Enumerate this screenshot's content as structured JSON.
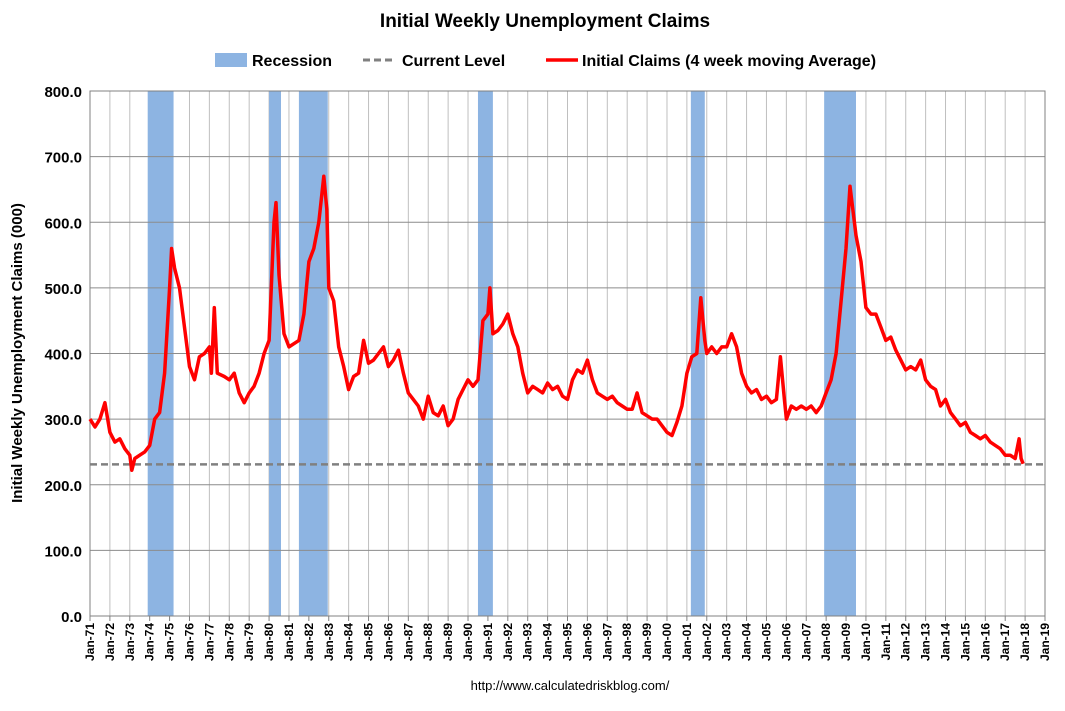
{
  "chart_data": {
    "type": "line",
    "title": "Initial Weekly Unemployment Claims",
    "ylabel": "Initial Weekly Unemployment Claims (000)",
    "footer": "http://www.calculatedriskblog.com/",
    "xlim": [
      1971,
      2019
    ],
    "xticks": [
      {
        "value": 1971,
        "label": "Jan-71"
      },
      {
        "value": 1972,
        "label": "Jan-72"
      },
      {
        "value": 1973,
        "label": "Jan-73"
      },
      {
        "value": 1974,
        "label": "Jan-74"
      },
      {
        "value": 1975,
        "label": "Jan-75"
      },
      {
        "value": 1976,
        "label": "Jan-76"
      },
      {
        "value": 1977,
        "label": "Jan-77"
      },
      {
        "value": 1978,
        "label": "Jan-78"
      },
      {
        "value": 1979,
        "label": "Jan-79"
      },
      {
        "value": 1980,
        "label": "Jan-80"
      },
      {
        "value": 1981,
        "label": "Jan-81"
      },
      {
        "value": 1982,
        "label": "Jan-82"
      },
      {
        "value": 1983,
        "label": "Jan-83"
      },
      {
        "value": 1984,
        "label": "Jan-84"
      },
      {
        "value": 1985,
        "label": "Jan-85"
      },
      {
        "value": 1986,
        "label": "Jan-86"
      },
      {
        "value": 1987,
        "label": "Jan-87"
      },
      {
        "value": 1988,
        "label": "Jan-88"
      },
      {
        "value": 1989,
        "label": "Jan-89"
      },
      {
        "value": 1990,
        "label": "Jan-90"
      },
      {
        "value": 1991,
        "label": "Jan-91"
      },
      {
        "value": 1992,
        "label": "Jan-92"
      },
      {
        "value": 1993,
        "label": "Jan-93"
      },
      {
        "value": 1994,
        "label": "Jan-94"
      },
      {
        "value": 1995,
        "label": "Jan-95"
      },
      {
        "value": 1996,
        "label": "Jan-96"
      },
      {
        "value": 1997,
        "label": "Jan-97"
      },
      {
        "value": 1998,
        "label": "Jan-98"
      },
      {
        "value": 1999,
        "label": "Jan-99"
      },
      {
        "value": 2000,
        "label": "Jan-00"
      },
      {
        "value": 2001,
        "label": "Jan-01"
      },
      {
        "value": 2002,
        "label": "Jan-02"
      },
      {
        "value": 2003,
        "label": "Jan-03"
      },
      {
        "value": 2004,
        "label": "Jan-04"
      },
      {
        "value": 2005,
        "label": "Jan-05"
      },
      {
        "value": 2006,
        "label": "Jan-06"
      },
      {
        "value": 2007,
        "label": "Jan-07"
      },
      {
        "value": 2008,
        "label": "Jan-08"
      },
      {
        "value": 2009,
        "label": "Jan-09"
      },
      {
        "value": 2010,
        "label": "Jan-10"
      },
      {
        "value": 2011,
        "label": "Jan-11"
      },
      {
        "value": 2012,
        "label": "Jan-12"
      },
      {
        "value": 2013,
        "label": "Jan-13"
      },
      {
        "value": 2014,
        "label": "Jan-14"
      },
      {
        "value": 2015,
        "label": "Jan-15"
      },
      {
        "value": 2016,
        "label": "Jan-16"
      },
      {
        "value": 2017,
        "label": "Jan-17"
      },
      {
        "value": 2018,
        "label": "Jan-18"
      },
      {
        "value": 2019,
        "label": "Jan-19"
      }
    ],
    "ylim": [
      0,
      800
    ],
    "yticks": [
      {
        "value": 0,
        "label": "0.0"
      },
      {
        "value": 100,
        "label": "100.0"
      },
      {
        "value": 200,
        "label": "200.0"
      },
      {
        "value": 300,
        "label": "300.0"
      },
      {
        "value": 400,
        "label": "400.0"
      },
      {
        "value": 500,
        "label": "500.0"
      },
      {
        "value": 600,
        "label": "600.0"
      },
      {
        "value": 700,
        "label": "700.0"
      },
      {
        "value": 800,
        "label": "800.0"
      }
    ],
    "grid": true,
    "legend": "top",
    "recessions": {
      "name": "Recession",
      "color": "#8db4e2",
      "spans": [
        [
          1973.9,
          1975.2
        ],
        [
          1980.0,
          1980.6
        ],
        [
          1981.5,
          1982.95
        ],
        [
          1990.5,
          1991.25
        ],
        [
          2001.2,
          2001.9
        ],
        [
          2007.9,
          2009.5
        ]
      ]
    },
    "current_level": {
      "name": "Current Level",
      "value": 231,
      "color": "#808080"
    },
    "x": [
      1971.0,
      1971.25,
      1971.5,
      1971.75,
      1972.0,
      1972.25,
      1972.5,
      1972.75,
      1973.0,
      1973.1,
      1973.25,
      1973.5,
      1973.75,
      1974.0,
      1974.25,
      1974.5,
      1974.75,
      1975.0,
      1975.1,
      1975.25,
      1975.5,
      1975.75,
      1976.0,
      1976.25,
      1976.5,
      1976.75,
      1977.0,
      1977.1,
      1977.25,
      1977.4,
      1977.75,
      1978.0,
      1978.25,
      1978.5,
      1978.75,
      1979.0,
      1979.25,
      1979.5,
      1979.75,
      1980.0,
      1980.25,
      1980.35,
      1980.5,
      1980.75,
      1981.0,
      1981.25,
      1981.5,
      1981.75,
      1982.0,
      1982.25,
      1982.5,
      1982.75,
      1982.9,
      1983.0,
      1983.25,
      1983.5,
      1983.75,
      1984.0,
      1984.25,
      1984.5,
      1984.75,
      1985.0,
      1985.25,
      1985.5,
      1985.75,
      1986.0,
      1986.25,
      1986.5,
      1986.75,
      1987.0,
      1987.25,
      1987.5,
      1987.75,
      1988.0,
      1988.25,
      1988.5,
      1988.75,
      1989.0,
      1989.25,
      1989.5,
      1989.75,
      1990.0,
      1990.25,
      1990.5,
      1990.75,
      1991.0,
      1991.1,
      1991.25,
      1991.5,
      1991.75,
      1992.0,
      1992.25,
      1992.5,
      1992.75,
      1993.0,
      1993.25,
      1993.5,
      1993.75,
      1994.0,
      1994.25,
      1994.5,
      1994.75,
      1995.0,
      1995.25,
      1995.5,
      1995.75,
      1996.0,
      1996.25,
      1996.5,
      1996.75,
      1997.0,
      1997.25,
      1997.5,
      1997.75,
      1998.0,
      1998.25,
      1998.5,
      1998.75,
      1999.0,
      1999.25,
      1999.5,
      1999.75,
      2000.0,
      2000.25,
      2000.5,
      2000.75,
      2001.0,
      2001.25,
      2001.5,
      2001.7,
      2001.9,
      2002.0,
      2002.25,
      2002.5,
      2002.75,
      2003.0,
      2003.25,
      2003.5,
      2003.75,
      2004.0,
      2004.25,
      2004.5,
      2004.75,
      2005.0,
      2005.25,
      2005.5,
      2005.7,
      2005.9,
      2006.0,
      2006.25,
      2006.5,
      2006.75,
      2007.0,
      2007.25,
      2007.5,
      2007.75,
      2008.0,
      2008.25,
      2008.5,
      2008.75,
      2009.0,
      2009.2,
      2009.5,
      2009.75,
      2010.0,
      2010.25,
      2010.5,
      2010.75,
      2011.0,
      2011.25,
      2011.5,
      2011.75,
      2012.0,
      2012.25,
      2012.5,
      2012.75,
      2013.0,
      2013.25,
      2013.5,
      2013.75,
      2014.0,
      2014.25,
      2014.5,
      2014.75,
      2015.0,
      2015.25,
      2015.5,
      2015.75,
      2016.0,
      2016.25,
      2016.5,
      2016.75,
      2017.0,
      2017.25,
      2017.5,
      2017.7,
      2017.8,
      2017.9
    ],
    "series": [
      {
        "name": "Initial Claims (4 week moving Average)",
        "color": "#ff0000",
        "values": [
          300,
          288,
          300,
          325,
          280,
          265,
          270,
          255,
          245,
          222,
          240,
          245,
          250,
          260,
          300,
          310,
          370,
          500,
          560,
          530,
          500,
          440,
          380,
          360,
          395,
          400,
          410,
          370,
          470,
          370,
          365,
          360,
          370,
          340,
          325,
          340,
          350,
          370,
          400,
          420,
          600,
          630,
          520,
          430,
          410,
          415,
          420,
          460,
          540,
          560,
          600,
          670,
          620,
          500,
          480,
          410,
          380,
          345,
          365,
          370,
          420,
          385,
          390,
          400,
          410,
          380,
          390,
          405,
          370,
          340,
          330,
          320,
          300,
          335,
          310,
          305,
          320,
          290,
          300,
          330,
          345,
          360,
          350,
          360,
          450,
          460,
          500,
          430,
          435,
          445,
          460,
          430,
          410,
          370,
          340,
          350,
          345,
          340,
          355,
          345,
          350,
          335,
          330,
          360,
          375,
          370,
          390,
          360,
          340,
          335,
          330,
          335,
          325,
          320,
          315,
          315,
          340,
          310,
          305,
          300,
          300,
          290,
          280,
          275,
          295,
          320,
          370,
          395,
          400,
          485,
          420,
          400,
          410,
          400,
          410,
          410,
          430,
          410,
          370,
          350,
          340,
          345,
          330,
          335,
          325,
          330,
          395,
          330,
          300,
          320,
          315,
          320,
          315,
          320,
          310,
          320,
          340,
          360,
          400,
          480,
          560,
          655,
          580,
          540,
          470,
          460,
          460,
          440,
          420,
          425,
          405,
          390,
          375,
          380,
          375,
          390,
          360,
          350,
          345,
          320,
          330,
          310,
          300,
          290,
          295,
          280,
          275,
          270,
          275,
          265,
          260,
          255,
          245,
          245,
          240,
          270,
          240,
          232
        ]
      }
    ]
  }
}
